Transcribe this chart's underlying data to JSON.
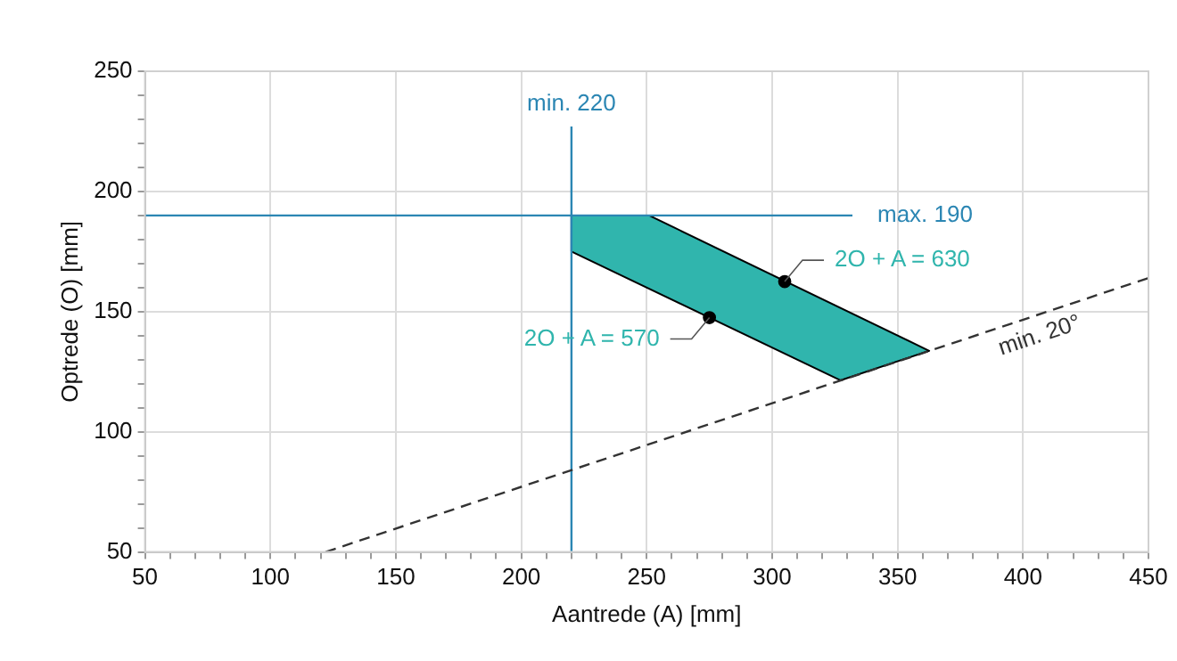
{
  "chart_data": {
    "type": "line",
    "xlabel": "Aantrede (A) [mm]",
    "ylabel": "Optrede (O) [mm]",
    "xlim": [
      50,
      450
    ],
    "ylim": [
      50,
      250
    ],
    "xticks": [
      50,
      {
        "value": 60,
        "label": null
      },
      {
        "value": 70,
        "label": null
      },
      {
        "value": 80,
        "label": null
      },
      {
        "value": 90,
        "label": null
      },
      100,
      {
        "value": 110,
        "label": null
      },
      {
        "value": 120,
        "label": null
      },
      {
        "value": 130,
        "label": null
      },
      {
        "value": 140,
        "label": null
      },
      150,
      {
        "value": 160,
        "label": null
      },
      {
        "value": 170,
        "label": null
      },
      {
        "value": 180,
        "label": null
      },
      {
        "value": 190,
        "label": null
      },
      200,
      {
        "value": 210,
        "label": null
      },
      {
        "value": 220,
        "label": null
      },
      {
        "value": 230,
        "label": null
      },
      {
        "value": 240,
        "label": null
      },
      250,
      {
        "value": 260,
        "label": null
      },
      {
        "value": 270,
        "label": null
      },
      {
        "value": 280,
        "label": null
      },
      {
        "value": 290,
        "label": null
      },
      300,
      {
        "value": 310,
        "label": null
      },
      {
        "value": 320,
        "label": null
      },
      {
        "value": 330,
        "label": null
      },
      {
        "value": 340,
        "label": null
      },
      350,
      {
        "value": 360,
        "label": null
      },
      {
        "value": 370,
        "label": null
      },
      {
        "value": 380,
        "label": null
      },
      {
        "value": 390,
        "label": null
      },
      400,
      {
        "value": 410,
        "label": null
      },
      {
        "value": 420,
        "label": null
      },
      {
        "value": 430,
        "label": null
      },
      {
        "value": 440,
        "label": null
      },
      450
    ],
    "yticks": [
      50,
      {
        "value": 60,
        "label": null
      },
      {
        "value": 70,
        "label": null
      },
      {
        "value": 80,
        "label": null
      },
      {
        "value": 90,
        "label": null
      },
      100,
      {
        "value": 110,
        "label": null
      },
      {
        "value": 120,
        "label": null
      },
      {
        "value": 130,
        "label": null
      },
      {
        "value": 140,
        "label": null
      },
      150,
      {
        "value": 160,
        "label": null
      },
      {
        "value": 170,
        "label": null
      },
      {
        "value": 180,
        "label": null
      },
      {
        "value": 190,
        "label": null
      },
      200,
      {
        "value": 210,
        "label": null
      },
      {
        "value": 220,
        "label": null
      },
      {
        "value": 230,
        "label": null
      },
      {
        "value": 240,
        "label": null
      },
      250
    ],
    "grid": true,
    "legend": false,
    "series": [
      {
        "type": "area",
        "color": "#30b5ad",
        "x": [
          220,
          220,
          251,
          362.6,
          327.2,
          220
        ],
        "values": [
          175,
          190,
          190,
          133.7,
          121.4,
          175
        ]
      },
      {
        "name": "min. 220",
        "color": "#2b86b3",
        "x": [
          220,
          220
        ],
        "values": [
          50,
          227
        ]
      },
      {
        "name": "max. 190",
        "color": "#2b86b3",
        "x": [
          50,
          332
        ],
        "values": [
          190,
          190
        ]
      },
      {
        "name": "min. 20°",
        "color": "#333333",
        "line_style": "dashed",
        "x": [
          122,
          450
        ],
        "values": [
          50,
          164
        ]
      },
      {
        "type": "scatter",
        "color": "#000000",
        "marker": "circle",
        "x": [
          275,
          305
        ],
        "values": [
          147.5,
          162.5
        ]
      }
    ],
    "annotations": [
      {
        "text": "2O + A = 630",
        "x": 305,
        "y": 162.5
      },
      {
        "text": "2O + A = 570",
        "x": 275,
        "y": 147.5
      }
    ]
  }
}
